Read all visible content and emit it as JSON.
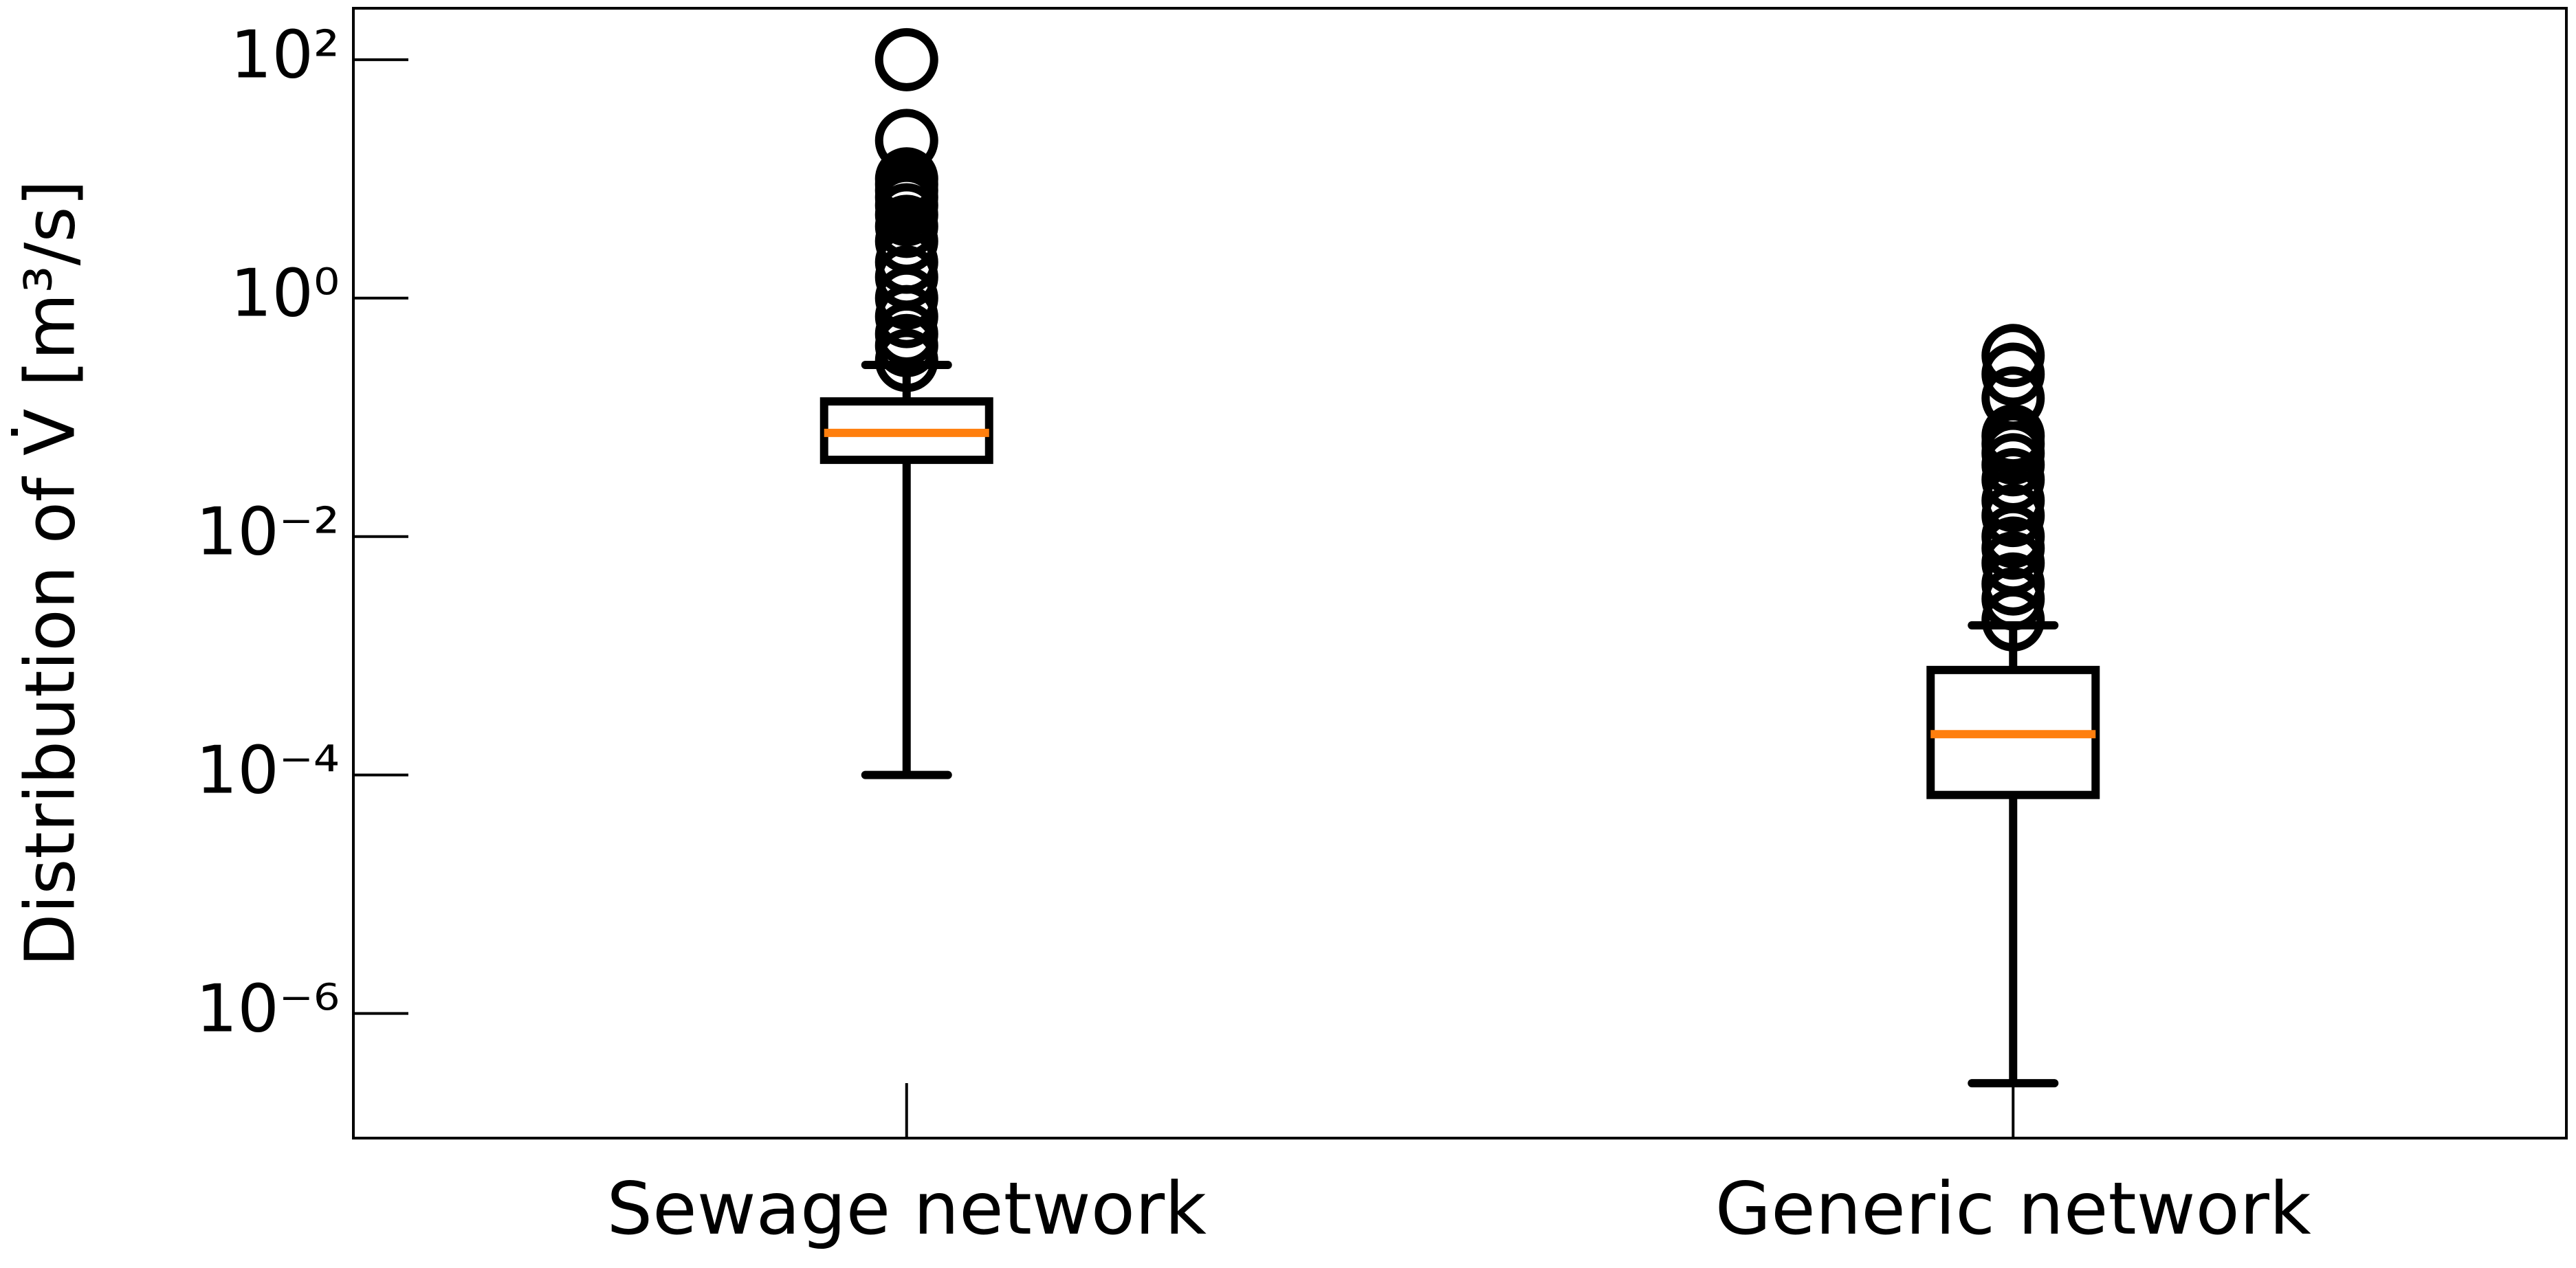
{
  "chart_data": {
    "type": "box",
    "y_label": "Distribution of V̇ [m³/s]",
    "categories": [
      "Sewage network",
      "Generic network"
    ],
    "log_y": true,
    "ylim": [
      9e-08,
      270
    ],
    "yticks": [
      {
        "value": 1e-06,
        "label": "10⁻⁶"
      },
      {
        "value": 0.0001,
        "label": "10⁻⁴"
      },
      {
        "value": 0.01,
        "label": "10⁻²"
      },
      {
        "value": 1,
        "label": "10⁰"
      },
      {
        "value": 100,
        "label": "10²"
      }
    ],
    "box_color": "#000000",
    "median_color": "#ff7f0e",
    "boxes": [
      {
        "whislo": 0.0001,
        "q1": 0.044,
        "med": 0.074,
        "q3": 0.136,
        "whishi": 0.275,
        "fliers": [
          0.3,
          0.4,
          0.5,
          0.7,
          1,
          1.5,
          2,
          3,
          4,
          5,
          6,
          7,
          8,
          9,
          10,
          21,
          100
        ]
      },
      {
        "whislo": 2.6e-07,
        "q1": 6.8e-05,
        "med": 0.00022,
        "q3": 0.00076,
        "whishi": 0.0018,
        "fliers": [
          0.002,
          0.003,
          0.004,
          0.006,
          0.008,
          0.01,
          0.015,
          0.02,
          0.03,
          0.04,
          0.05,
          0.06,
          0.07,
          0.145,
          0.23,
          0.33
        ]
      }
    ]
  }
}
